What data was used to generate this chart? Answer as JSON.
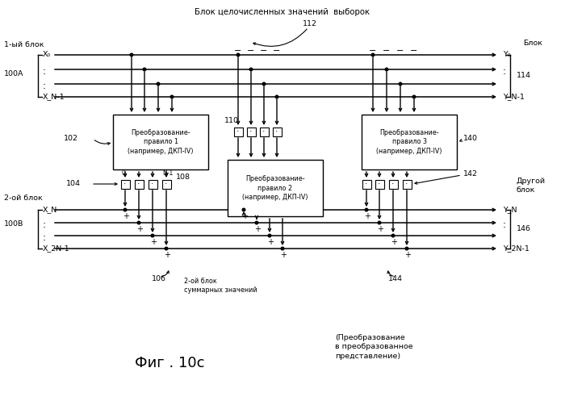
{
  "bg_color": "#ffffff",
  "top_label": "Блок целочисленных значений  выборок",
  "label_blok": "Блок",
  "label_114": "114",
  "label_146": "146",
  "label_100A": "100A",
  "label_100B": "100B",
  "label_1st": "1-ый блок",
  "label_2nd": "2-ой блок",
  "label_102": "102",
  "label_104": "104",
  "label_106": "106",
  "label_108": "108",
  "label_110": "110",
  "label_112": "112",
  "label_140": "140",
  "label_142": "142",
  "label_144": "144",
  "box1_text": "Преобразование-\nправило 1\n(например, ДКП-IV)",
  "box2_text": "Преобразование-\nправило 2\n(например, ДКП-IV)",
  "box3_text": "Преобразование-\nправило 3\n(например, ДКП-IV)",
  "label_sum": "2-ой блок\nсуммарных значений",
  "label_other": "Другой\nблок",
  "fig_title": "Фиг . 10с",
  "bottom_note": "(Преобразование\nв преобразованное\nпредставление)"
}
